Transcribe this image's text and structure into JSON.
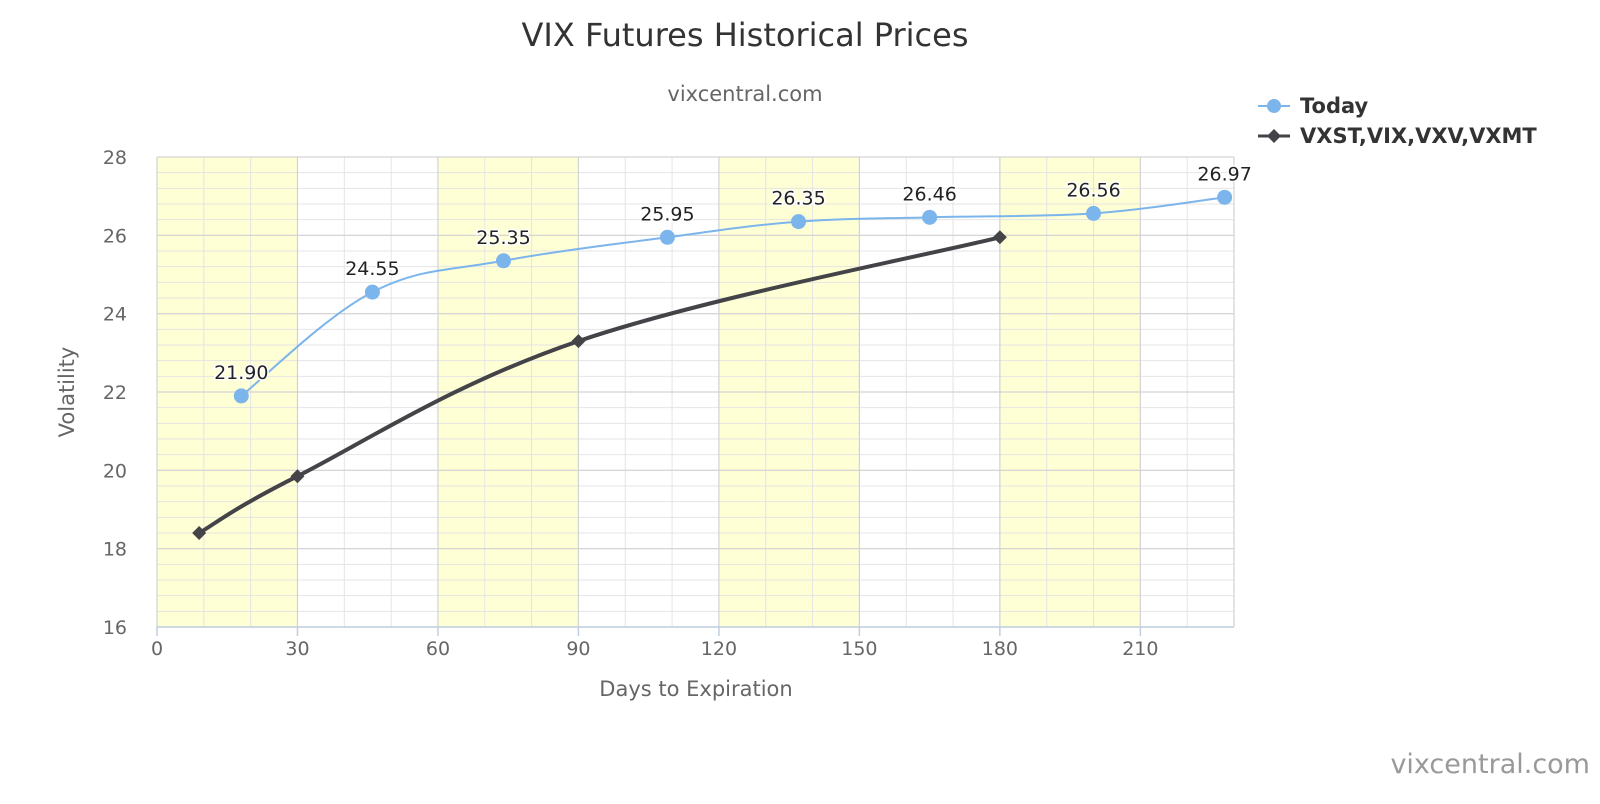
{
  "chart_data": {
    "type": "line",
    "title": "VIX Futures Historical Prices",
    "subtitle": "vixcentral.com",
    "xlabel": "Days to Expiration",
    "ylabel": "Volatility",
    "xlim": [
      0,
      230
    ],
    "ylim": [
      16,
      28
    ],
    "x_ticks": [
      0,
      30,
      60,
      90,
      120,
      150,
      180,
      210
    ],
    "y_ticks": [
      16,
      18,
      20,
      22,
      24,
      26,
      28
    ],
    "y_minor_step": 0.4,
    "x_minor_step": 10,
    "plot_bands": [
      [
        0,
        30
      ],
      [
        60,
        90
      ],
      [
        120,
        150
      ],
      [
        180,
        210
      ]
    ],
    "band_color": "#ffffd5",
    "grid": true,
    "legend_position": "top-right",
    "series": [
      {
        "name": "Today",
        "color": "#7cb5ec",
        "marker": "circle",
        "line": "spline",
        "data_labels": true,
        "points": [
          {
            "x": 18,
            "y": 21.9,
            "label": "21.90"
          },
          {
            "x": 46,
            "y": 24.55,
            "label": "24.55"
          },
          {
            "x": 74,
            "y": 25.35,
            "label": "25.35"
          },
          {
            "x": 109,
            "y": 25.95,
            "label": "25.95"
          },
          {
            "x": 137,
            "y": 26.35,
            "label": "26.35"
          },
          {
            "x": 165,
            "y": 26.46,
            "label": "26.46"
          },
          {
            "x": 200,
            "y": 26.56,
            "label": "26.56"
          },
          {
            "x": 228,
            "y": 26.97,
            "label": "26.97"
          }
        ]
      },
      {
        "name": "VXST,VIX,VXV,VXMT",
        "color": "#434348",
        "marker": "diamond",
        "line": "spline",
        "data_labels": false,
        "points": [
          {
            "x": 9,
            "y": 18.4
          },
          {
            "x": 30,
            "y": 19.85
          },
          {
            "x": 90,
            "y": 23.3
          },
          {
            "x": 180,
            "y": 25.95
          }
        ]
      }
    ],
    "credit": "vixcentral.com"
  }
}
